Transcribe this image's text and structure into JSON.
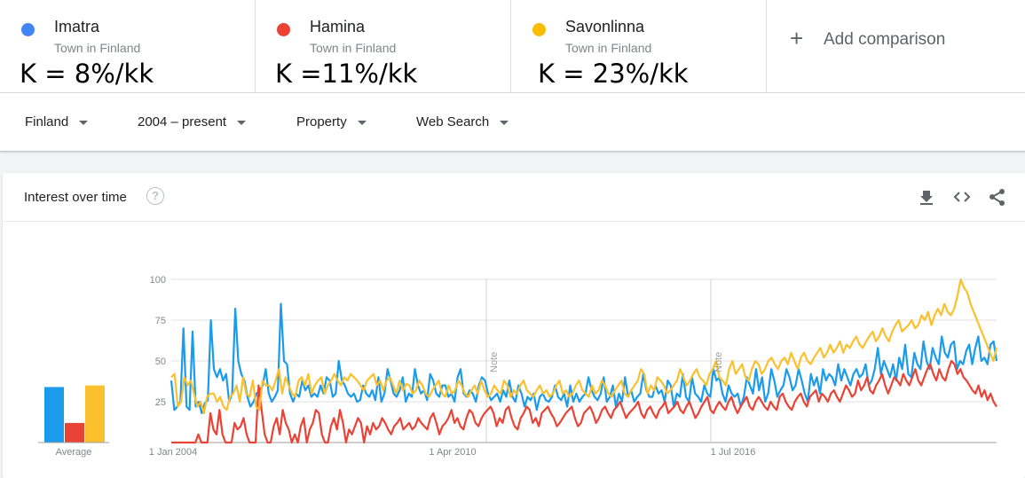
{
  "terms": [
    {
      "name": "Imatra",
      "subtitle": "Town in Finland",
      "annotation": "K = 8%/kk",
      "color": "#4285f4"
    },
    {
      "name": "Hamina",
      "subtitle": "Town in Finland",
      "annotation": "K =11%/kk",
      "color": "#ea4335"
    },
    {
      "name": "Savonlinna",
      "subtitle": "Town in Finland",
      "annotation": "K = 23%/kk",
      "color": "#fbbc04"
    }
  ],
  "add_comparison": {
    "label": "Add comparison",
    "icon": "plus-icon"
  },
  "filters": {
    "region": "Finland",
    "time_range": "2004 – present",
    "category": "Property",
    "search_type": "Web Search"
  },
  "card": {
    "title": "Interest over time",
    "help_icon": "help-icon",
    "tools": [
      "download-icon",
      "embed-icon",
      "share-icon"
    ]
  },
  "chart_data": {
    "type": "line",
    "y_ticks": [
      "100",
      "75",
      "50",
      "25"
    ],
    "x_ticks": [
      "1 Jan 2004",
      "1 Apr 2010",
      "1 Jul 2016"
    ],
    "ylim": [
      0,
      100
    ],
    "notes": [
      "Note",
      "Note"
    ],
    "average_label": "Average",
    "averages": [
      {
        "name": "Imatra",
        "value": 34,
        "color": "#1a9bec"
      },
      {
        "name": "Hamina",
        "value": 12,
        "color": "#ea4335"
      },
      {
        "name": "Savonlinna",
        "value": 35,
        "color": "#fbc02d"
      }
    ],
    "series": [
      {
        "name": "Imatra",
        "color": "#1a9bec",
        "values": [
          38,
          20,
          22,
          25,
          70,
          22,
          20,
          68,
          22,
          25,
          18,
          24,
          26,
          75,
          45,
          40,
          45,
          38,
          42,
          25,
          30,
          82,
          50,
          42,
          38,
          28,
          22,
          25,
          30,
          32,
          35,
          45,
          30,
          25,
          28,
          32,
          85,
          50,
          48,
          30,
          25,
          30,
          28,
          38,
          32,
          35,
          28,
          30,
          28,
          35,
          30,
          40,
          38,
          28,
          30,
          50,
          38,
          35,
          30,
          28,
          30,
          25,
          26,
          35,
          30,
          28,
          32,
          26,
          40,
          25,
          30,
          45,
          38,
          30,
          28,
          32,
          40,
          25,
          30,
          28,
          45,
          35,
          30,
          32,
          26,
          42,
          38,
          30,
          28,
          35,
          35,
          28,
          30,
          25,
          40,
          45,
          30,
          28,
          32,
          30,
          25,
          35,
          40,
          38,
          30,
          26,
          28,
          30,
          25,
          32,
          28,
          38,
          28,
          25,
          35,
          30,
          22,
          28,
          26,
          30,
          20,
          28,
          30,
          26,
          25,
          28,
          35,
          28,
          26,
          30,
          22,
          35,
          25,
          30,
          25,
          28,
          30,
          40,
          32,
          28,
          26,
          30,
          40,
          25,
          28,
          35,
          22,
          30,
          25,
          40,
          28,
          32,
          25,
          28,
          30,
          42,
          32,
          28,
          28,
          35,
          30,
          32,
          25,
          38,
          35,
          22,
          30,
          28,
          42,
          28,
          25,
          40,
          30,
          28,
          25,
          35,
          30,
          28,
          45,
          38,
          40,
          30,
          25,
          35,
          30,
          28,
          30,
          22,
          28,
          40,
          35,
          30,
          45,
          32,
          40,
          25,
          30,
          45,
          38,
          28,
          32,
          35,
          45,
          40,
          32,
          35,
          45,
          38,
          30,
          25,
          42,
          35,
          40,
          30,
          45,
          38,
          42,
          40,
          35,
          48,
          38,
          45,
          40,
          35,
          42,
          45,
          40,
          42,
          48,
          35,
          38,
          45,
          58,
          42,
          50,
          45,
          40,
          48,
          38,
          52,
          45,
          60,
          42,
          40,
          55,
          48,
          45,
          62,
          50,
          45,
          58,
          52,
          48,
          65,
          55,
          52,
          60,
          62,
          45,
          50,
          48,
          56,
          60,
          48,
          58,
          65,
          50,
          52,
          48,
          60,
          62,
          50
        ]
      },
      {
        "name": "Hamina",
        "color": "#ea4335",
        "values": [
          0,
          0,
          0,
          0,
          0,
          0,
          0,
          0,
          0,
          5,
          0,
          0,
          0,
          18,
          8,
          5,
          20,
          5,
          0,
          0,
          0,
          12,
          8,
          10,
          15,
          5,
          0,
          0,
          0,
          35,
          20,
          5,
          0,
          0,
          10,
          15,
          5,
          20,
          12,
          8,
          0,
          5,
          0,
          10,
          15,
          0,
          8,
          12,
          20,
          18,
          5,
          0,
          0,
          10,
          15,
          8,
          20,
          12,
          0,
          8,
          5,
          10,
          15,
          12,
          0,
          10,
          5,
          12,
          8,
          10,
          15,
          12,
          8,
          5,
          10,
          12,
          15,
          8,
          10,
          12,
          8,
          10,
          15,
          12,
          10,
          8,
          15,
          18,
          12,
          5,
          10,
          12,
          15,
          20,
          12,
          15,
          10,
          8,
          15,
          20,
          18,
          12,
          10,
          15,
          18,
          20,
          22,
          18,
          10,
          15,
          12,
          20,
          22,
          15,
          10,
          8,
          15,
          18,
          22,
          20,
          12,
          15,
          10,
          18,
          20,
          22,
          18,
          15,
          10,
          12,
          15,
          18,
          20,
          22,
          15,
          10,
          12,
          18,
          20,
          22,
          18,
          12,
          15,
          20,
          22,
          18,
          15,
          20,
          22,
          25,
          20,
          15,
          18,
          20,
          22,
          25,
          18,
          15,
          20,
          22,
          18,
          15,
          20,
          22,
          25,
          18,
          20,
          22,
          25,
          20,
          18,
          22,
          25,
          20,
          15,
          18,
          22,
          25,
          28,
          20,
          18,
          22,
          25,
          22,
          20,
          25,
          28,
          22,
          18,
          22,
          25,
          28,
          22,
          20,
          25,
          28,
          25,
          22,
          20,
          25,
          22,
          20,
          28,
          30,
          25,
          22,
          20,
          25,
          28,
          30,
          25,
          22,
          28,
          30,
          32,
          25,
          30,
          28,
          25,
          30,
          32,
          28,
          25,
          30,
          35,
          32,
          28,
          30,
          38,
          32,
          35,
          40,
          32,
          30,
          35,
          38,
          42,
          35,
          30,
          35,
          40,
          38,
          35,
          42,
          38,
          35,
          40,
          45,
          38,
          35,
          40,
          45,
          48,
          42,
          38,
          45,
          40,
          38,
          45,
          50,
          48,
          42,
          45,
          40,
          38,
          35,
          32,
          30,
          35,
          28,
          32,
          26,
          30,
          25,
          22
        ]
      },
      {
        "name": "Savonlinna",
        "color": "#fbc02d",
        "values": [
          40,
          42,
          22,
          25,
          40,
          35,
          38,
          30,
          22,
          25,
          18,
          28,
          30,
          30,
          25,
          28,
          22,
          20,
          28,
          30,
          35,
          25,
          40,
          30,
          28,
          38,
          22,
          20,
          38,
          35,
          35,
          32,
          38,
          45,
          30,
          40,
          35,
          30,
          28,
          38,
          40,
          35,
          42,
          30,
          35,
          38,
          40,
          30,
          35,
          38,
          42,
          38,
          35,
          40,
          38,
          42,
          40,
          38,
          35,
          32,
          38,
          40,
          42,
          35,
          38,
          32,
          38,
          40,
          35,
          30,
          38,
          32,
          36,
          35,
          30,
          32,
          38,
          35,
          30,
          28,
          32,
          35,
          38,
          30,
          28,
          35,
          30,
          32,
          38,
          35,
          30,
          28,
          32,
          35,
          30,
          38,
          32,
          28,
          30,
          35,
          32,
          30,
          38,
          35,
          28,
          32,
          30,
          35,
          38,
          32,
          30,
          28,
          32,
          35,
          30,
          32,
          28,
          30,
          35,
          38,
          30,
          32,
          28,
          30,
          35,
          38,
          32,
          30,
          28,
          35,
          30,
          32,
          38,
          35,
          30,
          28,
          32,
          35,
          38,
          30,
          28,
          32,
          35,
          38,
          45,
          42,
          30,
          35,
          32,
          40,
          38,
          35,
          30,
          32,
          35,
          38,
          45,
          40,
          35,
          38,
          42,
          45,
          40,
          38,
          35,
          42,
          45,
          50,
          40,
          38,
          35,
          45,
          50,
          42,
          45,
          48,
          40,
          38,
          45,
          50,
          48,
          42,
          45,
          50,
          52,
          48,
          45,
          50,
          52,
          48,
          55,
          50,
          45,
          52,
          55,
          50,
          48,
          52,
          55,
          58,
          52,
          55,
          60,
          55,
          58,
          62,
          55,
          60,
          58,
          62,
          65,
          60,
          58,
          62,
          65,
          68,
          62,
          65,
          70,
          65,
          62,
          68,
          72,
          75,
          68,
          70,
          72,
          75,
          70,
          72,
          78,
          75,
          80,
          72,
          78,
          82,
          78,
          85,
          80,
          78,
          82,
          90,
          100,
          95,
          92,
          85,
          80,
          75,
          70,
          65,
          60,
          55,
          50,
          58
        ]
      }
    ]
  }
}
